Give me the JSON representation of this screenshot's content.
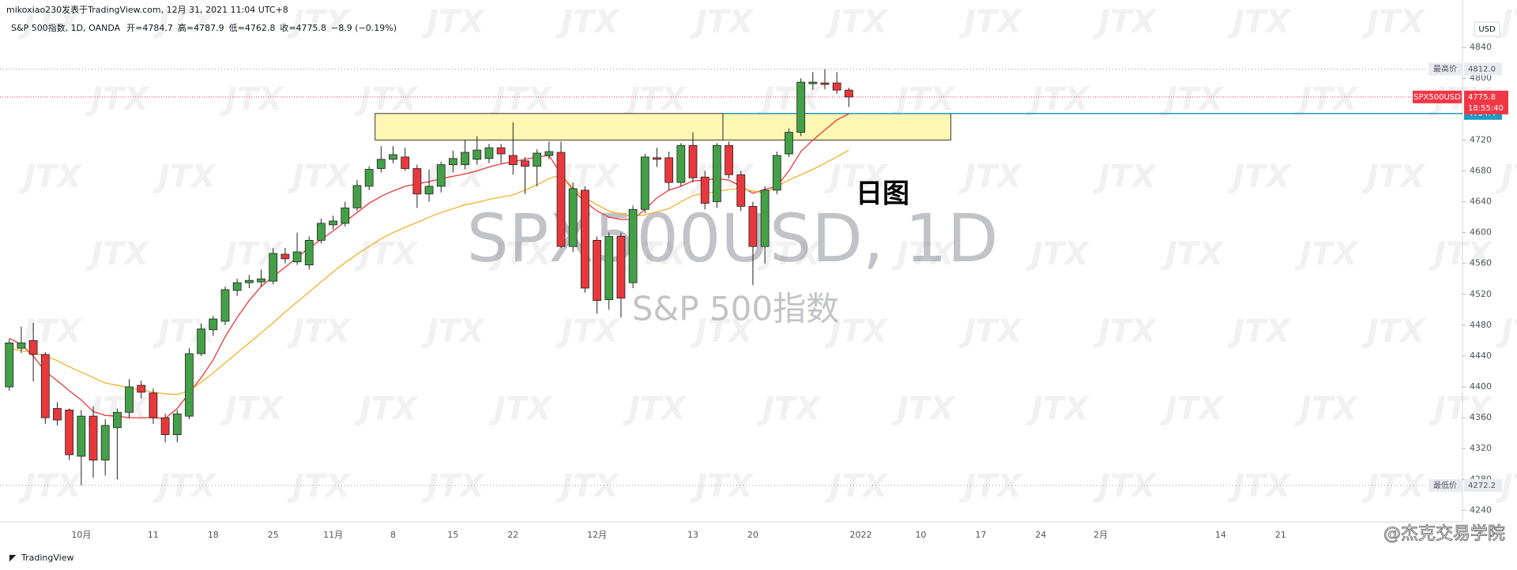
{
  "header": {
    "author_line": "mikoxiao230发表于TradingView.com, 12月 31, 2021 11:04 UTC+8",
    "branding": "TradingView",
    "credit": "@杰克交易学院",
    "brand_watermark": "JTX"
  },
  "chart_data": {
    "type": "candlestick",
    "title": "S&P 500指数, 1D, OANDA",
    "ohlc_labels": [
      "开=",
      "高=",
      "低=",
      "收="
    ],
    "change_label": "−8.9 (−0.19%)",
    "watermark": "SPX500USD, 1D",
    "watermark_subtitle": "S&P 500指数",
    "annotation": "日图",
    "currency": "USD",
    "up_color": "#43a047",
    "down_color": "#e8383b",
    "categories": [
      null,
      null,
      null,
      null,
      null,
      null,
      "10月",
      null,
      null,
      null,
      null,
      null,
      "11",
      null,
      null,
      null,
      null,
      "18",
      null,
      null,
      null,
      null,
      "25",
      null,
      null,
      null,
      null,
      "11月",
      null,
      null,
      null,
      null,
      "8",
      null,
      null,
      null,
      null,
      "15",
      null,
      null,
      null,
      null,
      "22",
      null,
      null,
      null,
      null,
      null,
      null,
      "12月",
      null,
      null,
      null,
      null,
      null,
      null,
      null,
      "13",
      null,
      null,
      null,
      null,
      "20",
      null,
      null,
      null,
      null,
      null,
      null,
      null,
      null,
      "2022",
      null,
      null,
      null,
      null,
      "10",
      null,
      null,
      null,
      null,
      "17",
      null,
      null,
      null,
      null,
      "24",
      null,
      null,
      null,
      null,
      "2月",
      null,
      null,
      null,
      null,
      null,
      null,
      null,
      null,
      null,
      "14",
      null,
      null,
      null,
      null,
      "21"
    ],
    "open": [
      4400,
      4450,
      4460,
      4442,
      4372,
      4370,
      4310,
      4362,
      4305,
      4347,
      4367,
      4402,
      4392,
      4360,
      4338,
      4362,
      4443,
      4474,
      4485,
      4525,
      4535,
      4536,
      4537,
      4572,
      4562,
      4558,
      4590,
      4610,
      4612,
      4632,
      4660,
      4683,
      4695,
      4698,
      4683,
      4650,
      4660,
      4688,
      4688,
      4695,
      4696,
      4710,
      4700,
      4693,
      4686,
      4700,
      4704,
      4582,
      4655,
      4590,
      4513,
      4595,
      4535,
      4630,
      4697,
      4697,
      4665,
      4713,
      4672,
      4640,
      4713,
      4675,
      4634,
      4582,
      4655,
      4702,
      4730,
      4793,
      4794,
      4794,
      4784.7,
      null,
      null,
      null,
      null,
      null,
      null,
      null,
      null,
      null,
      null,
      null,
      null,
      null,
      null,
      null,
      null,
      null,
      null,
      null,
      null,
      null,
      null,
      null,
      null,
      null,
      null,
      null,
      null,
      null,
      null,
      null,
      null,
      null,
      null,
      null,
      null
    ],
    "high": [
      4462,
      4478,
      4483,
      4445,
      4380,
      4372,
      4370,
      4375,
      4358,
      4372,
      4410,
      4408,
      4398,
      4365,
      4370,
      4450,
      4482,
      4492,
      4530,
      4540,
      4545,
      4552,
      4580,
      4580,
      4600,
      4595,
      4618,
      4622,
      4640,
      4668,
      4686,
      4712,
      4712,
      4710,
      4688,
      4682,
      4692,
      4706,
      4720,
      4725,
      4715,
      4715,
      4743,
      4698,
      4708,
      4718,
      4718,
      4665,
      4660,
      4595,
      4600,
      4600,
      4635,
      4702,
      4710,
      4705,
      4716,
      4730,
      4680,
      4716,
      4718,
      4680,
      4640,
      4660,
      4705,
      4735,
      4800,
      4808,
      4812,
      4808,
      4787.9,
      null,
      null,
      null,
      null,
      null,
      null,
      null,
      null,
      null,
      null,
      null,
      null,
      null,
      null,
      null,
      null,
      null,
      null,
      null,
      null,
      null,
      null,
      null,
      null,
      null,
      null,
      null,
      null,
      null,
      null,
      null,
      null,
      null,
      null,
      null,
      null
    ],
    "low": [
      4395,
      4444,
      4407,
      4352,
      4350,
      4305,
      4272.2,
      4282,
      4285,
      4280,
      4360,
      4385,
      4352,
      4328,
      4328,
      4358,
      4440,
      4466,
      4480,
      4518,
      4528,
      4530,
      4533,
      4560,
      4558,
      4552,
      4586,
      4604,
      4608,
      4628,
      4655,
      4678,
      4690,
      4680,
      4632,
      4640,
      4652,
      4678,
      4682,
      4688,
      4690,
      4690,
      4675,
      4650,
      4660,
      4695,
      4580,
      4575,
      4522,
      4495,
      4500,
      4490,
      4528,
      4625,
      4685,
      4655,
      4660,
      4665,
      4630,
      4632,
      4670,
      4628,
      4532,
      4560,
      4650,
      4698,
      4725,
      4785,
      4786,
      4780,
      4762.8,
      null,
      null,
      null,
      null,
      null,
      null,
      null,
      null,
      null,
      null,
      null,
      null,
      null,
      null,
      null,
      null,
      null,
      null,
      null,
      null,
      null,
      null,
      null,
      null,
      null,
      null,
      null,
      null,
      null,
      null,
      null,
      null,
      null,
      null,
      null,
      null
    ],
    "close": [
      4457,
      4457,
      4442,
      4360,
      4357,
      4312,
      4362,
      4305,
      4350,
      4367,
      4400,
      4393,
      4360,
      4338,
      4365,
      4443,
      4475,
      4488,
      4526,
      4535,
      4538,
      4540,
      4573,
      4566,
      4575,
      4590,
      4612,
      4615,
      4632,
      4661,
      4682,
      4695,
      4701,
      4683,
      4650,
      4660,
      4688,
      4696,
      4704,
      4707,
      4710,
      4702,
      4688,
      4686,
      4703,
      4705,
      4582,
      4657,
      4528,
      4512,
      4595,
      4515,
      4630,
      4698,
      4695,
      4665,
      4713,
      4671,
      4638,
      4713,
      4675,
      4634,
      4582,
      4655,
      4700,
      4730,
      4795,
      4795,
      4792,
      4784.7,
      4775.8,
      null,
      null,
      null,
      null,
      null,
      null,
      null,
      null,
      null,
      null,
      null,
      null,
      null,
      null,
      null,
      null,
      null,
      null,
      null,
      null,
      null,
      null,
      null,
      null,
      null,
      null,
      null,
      null,
      null,
      null,
      null,
      null,
      null,
      null,
      null,
      null
    ],
    "overlays": [
      {
        "color": "#e53935",
        "values": [
          4463,
          4455,
          4440,
          4420,
          4408,
          4395,
          4383,
          4368,
          4363,
          4362,
          4360,
          4360,
          4360,
          4359,
          4372,
          4392,
          4412,
          4435,
          4465,
          4490,
          4512,
          4530,
          4543,
          4555,
          4568,
          4580,
          4591,
          4602,
          4614,
          4626,
          4638,
          4647,
          4654,
          4660,
          4663,
          4666,
          4670,
          4673,
          4676,
          4680,
          4685,
          4689,
          4692,
          4695,
          4698,
          4700,
          4676,
          4655,
          4640,
          4628,
          4620,
          4617,
          4617,
          4630,
          4645,
          4655,
          4660,
          4667,
          4668,
          4670,
          4668,
          4660,
          4651,
          4656,
          4660,
          4680,
          4705,
          4720,
          4733,
          4746,
          4754,
          null,
          null,
          null,
          null,
          null,
          null,
          null,
          null,
          null,
          null,
          null,
          null,
          null,
          null,
          null,
          null,
          null,
          null,
          null,
          null,
          null,
          null,
          null,
          null,
          null,
          null,
          null,
          null,
          null,
          null,
          null,
          null,
          null,
          null,
          null,
          null
        ]
      },
      {
        "color": "#f5b02a",
        "values": [
          4450,
          4447,
          4444,
          4440,
          4434,
          4426,
          4419,
          4412,
          4405,
          4402,
          4399,
          4396,
          4393,
          4391,
          4390,
          4395,
          4406,
          4418,
          4431,
          4444,
          4457,
          4470,
          4483,
          4497,
          4510,
          4523,
          4536,
          4549,
          4561,
          4572,
          4582,
          4592,
          4600,
          4607,
          4613,
          4620,
          4626,
          4631,
          4636,
          4639,
          4643,
          4646,
          4649,
          4655,
          4662,
          4670,
          4675,
          4658,
          4645,
          4636,
          4628,
          4624,
          4621,
          4623,
          4627,
          4631,
          4640,
          4648,
          4651,
          4653,
          4656,
          4657,
          4654,
          4651,
          4660,
          4668,
          4675,
          4682,
          4690,
          4698,
          4707,
          null,
          null,
          null,
          null,
          null,
          null,
          null,
          null,
          null,
          null,
          null,
          null,
          null,
          null,
          null,
          null,
          null,
          null,
          null,
          null,
          null,
          null,
          null,
          null,
          null,
          null,
          null,
          null,
          null,
          null,
          null,
          null,
          null,
          null,
          null,
          null
        ]
      }
    ],
    "zones": [
      {
        "from": 31,
        "to": 60,
        "top": 4754.4,
        "bottom": 4720
      },
      {
        "from": 60,
        "to": 79,
        "top": 4754.4,
        "bottom": 4720
      }
    ],
    "price_lines": [
      {
        "name": "最高价",
        "value": 4812,
        "label": "4812.0",
        "color": "#9598a1"
      },
      {
        "name": "最低价",
        "value": 4272.2,
        "color": "#9598a1"
      }
    ],
    "last_price": {
      "name": "SPX500USD",
      "value": 4775.8,
      "countdown": "18:55:40",
      "color": "#f23645"
    },
    "level_line": {
      "value": 4754.4,
      "from": 60,
      "color": "#1e9bc4"
    },
    "ylim": [
      4225,
      4879
    ],
    "yticks": [
      4240,
      4280,
      4320,
      4360,
      4400,
      4440,
      4480,
      4520,
      4560,
      4600,
      4640,
      4680,
      4720,
      4800,
      4840
    ],
    "grid": false
  }
}
